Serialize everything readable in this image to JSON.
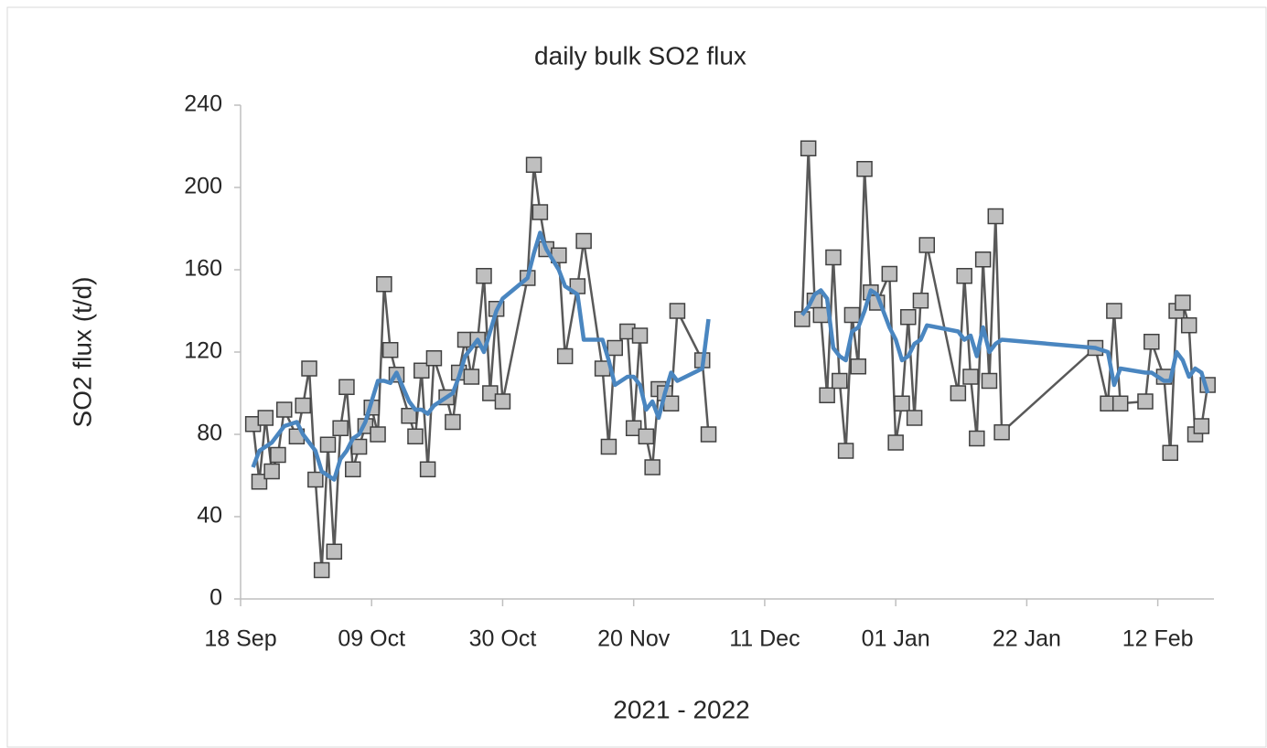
{
  "chart_data": {
    "type": "line",
    "title": "daily bulk SO2 flux",
    "y_label": "SO2 flux (t/d)",
    "x_label": "2021 - 2022",
    "x": [
      "20 Sep",
      "21 Sep",
      "22 Sep",
      "23 Sep",
      "24 Sep",
      "25 Sep",
      "27 Sep",
      "28 Sep",
      "29 Sep",
      "30 Sep",
      "01 Oct",
      "02 Oct",
      "03 Oct",
      "04 Oct",
      "05 Oct",
      "06 Oct",
      "07 Oct",
      "08 Oct",
      "09 Oct",
      "10 Oct",
      "11 Oct",
      "12 Oct",
      "13 Oct",
      "15 Oct",
      "16 Oct",
      "17 Oct",
      "18 Oct",
      "19 Oct",
      "21 Oct",
      "22 Oct",
      "23 Oct",
      "24 Oct",
      "25 Oct",
      "26 Oct",
      "27 Oct",
      "28 Oct",
      "29 Oct",
      "30 Oct",
      "03 Nov",
      "04 Nov",
      "05 Nov",
      "06 Nov",
      "08 Nov",
      "09 Nov",
      "11 Nov",
      "12 Nov",
      "15 Nov",
      "16 Nov",
      "17 Nov",
      "19 Nov",
      "20 Nov",
      "21 Nov",
      "22 Nov",
      "23 Nov",
      "24 Nov",
      "25 Nov",
      "26 Nov",
      "27 Nov",
      "01 Dec",
      "02 Dec",
      "10 Dec",
      "17 Dec",
      "18 Dec",
      "19 Dec",
      "20 Dec",
      "21 Dec",
      "22 Dec",
      "23 Dec",
      "24 Dec",
      "25 Dec",
      "26 Dec",
      "27 Dec",
      "28 Dec",
      "29 Dec",
      "31 Dec",
      "01 Jan",
      "02 Jan",
      "03 Jan",
      "04 Jan",
      "05 Jan",
      "06 Jan",
      "11 Jan",
      "12 Jan",
      "13 Jan",
      "14 Jan",
      "15 Jan",
      "16 Jan",
      "17 Jan",
      "18 Jan",
      "02 Feb",
      "04 Feb",
      "05 Feb",
      "06 Feb",
      "10 Feb",
      "11 Feb",
      "13 Feb",
      "14 Feb",
      "15 Feb",
      "16 Feb",
      "17 Feb",
      "18 Feb",
      "19 Feb",
      "20 Feb"
    ],
    "series": [
      {
        "color": "#595959",
        "marker_fill": "#bfbfbf",
        "marker_stroke": "#404040",
        "values": [
          85,
          57,
          88,
          62,
          70,
          92,
          79,
          94,
          112,
          58,
          14,
          75,
          23,
          83,
          103,
          63,
          74,
          84,
          93,
          80,
          153,
          121,
          109,
          89,
          79,
          111,
          63,
          117,
          98,
          86,
          110,
          126,
          108,
          126,
          157,
          100,
          141,
          96,
          156,
          211,
          188,
          170,
          167,
          118,
          152,
          174,
          112,
          74,
          122,
          130,
          83,
          128,
          79,
          64,
          102,
          100,
          95,
          140,
          116,
          80,
          null,
          136,
          219,
          145,
          138,
          99,
          166,
          106,
          72,
          138,
          113,
          209,
          149,
          144,
          158,
          76,
          95,
          137,
          88,
          145,
          172,
          100,
          157,
          108,
          78,
          165,
          106,
          186,
          81,
          122,
          95,
          140,
          95,
          96,
          125,
          108,
          71,
          140,
          144,
          133,
          80,
          84,
          104
        ]
      },
      {
        "color": "#4a86c0",
        "values": [
          64,
          72,
          74,
          76,
          80,
          84,
          86,
          80,
          76,
          72,
          62,
          60,
          58,
          68,
          72,
          78,
          80,
          86,
          96,
          106,
          106,
          105,
          110,
          96,
          92,
          92,
          90,
          94,
          98,
          100,
          108,
          118,
          122,
          126,
          120,
          130,
          140,
          146,
          156,
          168,
          178,
          170,
          160,
          152,
          148,
          126,
          126,
          116,
          104,
          108,
          108,
          104,
          92,
          96,
          88,
          100,
          110,
          106,
          112,
          136,
          null,
          138,
          142,
          148,
          150,
          146,
          122,
          118,
          116,
          130,
          132,
          140,
          150,
          148,
          132,
          126,
          116,
          118,
          124,
          126,
          133,
          130,
          126,
          128,
          118,
          132,
          120,
          124,
          126,
          122,
          120,
          104,
          112,
          110,
          110,
          106,
          106,
          120,
          116,
          108,
          112,
          110,
          100
        ]
      }
    ],
    "xlim": [
      "18 Sep",
      "21 Feb"
    ],
    "xticks": [
      "18 Sep",
      "09 Oct",
      "30 Oct",
      "20 Nov",
      "11 Dec",
      "01 Jan",
      "22 Jan",
      "12 Feb"
    ],
    "ylim": [
      0,
      240
    ],
    "yticks": [
      0,
      40,
      80,
      120,
      160,
      200,
      240
    ]
  }
}
